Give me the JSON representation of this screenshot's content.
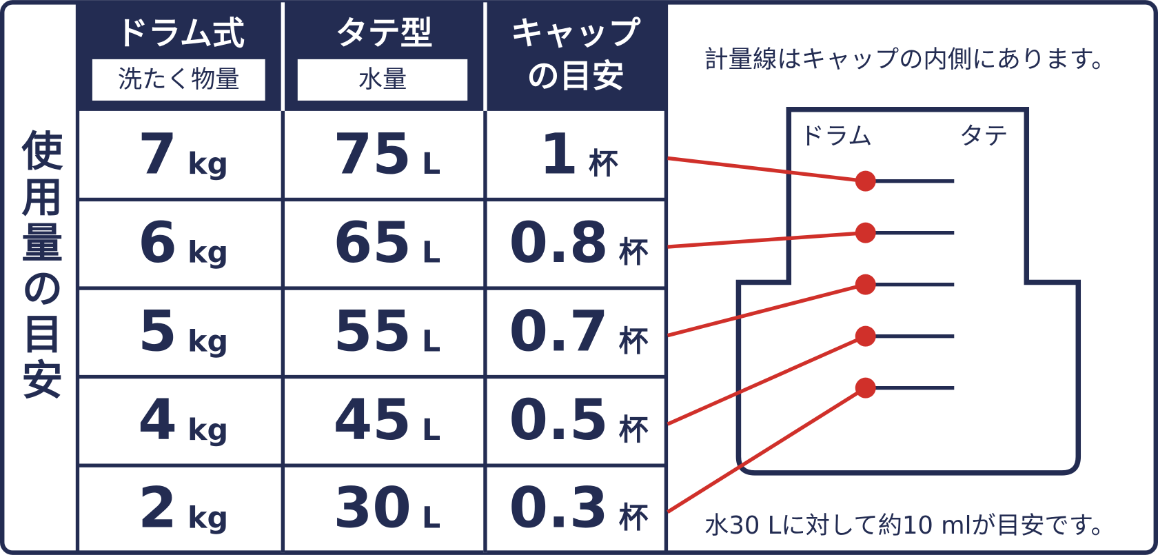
{
  "side_label": "使用量の目安",
  "headers": [
    {
      "title": "ドラム式",
      "subtitle": "洗たく物量"
    },
    {
      "title": "タテ型",
      "subtitle": "水量"
    },
    {
      "title_lines": [
        "キャップ",
        "の目安"
      ]
    }
  ],
  "rows": [
    [
      {
        "value": "7",
        "unit": "kg"
      },
      {
        "value": "75",
        "unit": "L"
      },
      {
        "value": "1",
        "unit": "杯"
      }
    ],
    [
      {
        "value": "6",
        "unit": "kg"
      },
      {
        "value": "65",
        "unit": "L"
      },
      {
        "value": "0.8",
        "unit": "杯"
      }
    ],
    [
      {
        "value": "5",
        "unit": "kg"
      },
      {
        "value": "55",
        "unit": "L"
      },
      {
        "value": "0.7",
        "unit": "杯"
      }
    ],
    [
      {
        "value": "4",
        "unit": "kg"
      },
      {
        "value": "45",
        "unit": "L"
      },
      {
        "value": "0.5",
        "unit": "杯"
      }
    ],
    [
      {
        "value": "2",
        "unit": "kg"
      },
      {
        "value": "30",
        "unit": "L"
      },
      {
        "value": "0.3",
        "unit": "杯"
      }
    ]
  ],
  "diagram": {
    "note": "計量線はキャップの内側にあります。",
    "drum_label": "ドラム",
    "tate_label": "タテ",
    "footer": "水30 Lに対して約10 mlが目安です。"
  }
}
